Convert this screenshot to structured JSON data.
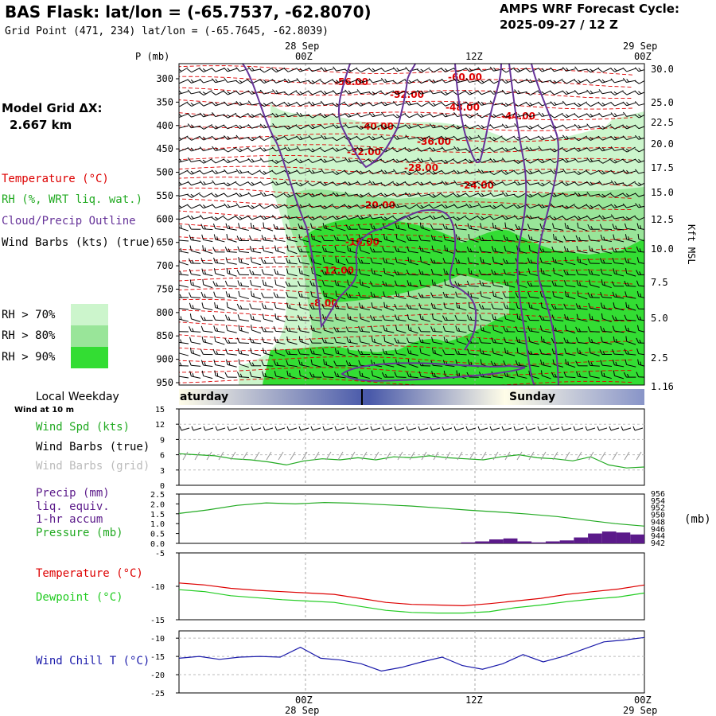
{
  "header": {
    "title": "BAS Flask:  lat/lon = (-65.7537, -62.8070)",
    "grid_point": "Grid Point (471, 234) lat/lon = (-65.7645, -62.8039)",
    "cycle_title": "AMPS WRF Forecast Cycle:",
    "cycle_value": "2025-09-27 / 12  Z"
  },
  "model_grid": {
    "label": "Model Grid ΔX:",
    "value": "2.667 km"
  },
  "legend": {
    "temperature": "Temperature (°C)",
    "rh": "RH (%, WRT liq. wat.)",
    "cloud": "Cloud/Precip Outline",
    "wind": "Wind Barbs (kts) (true)",
    "rh70": "RH > 70%",
    "rh80": "RH > 80%",
    "rh90": "RH > 90%"
  },
  "colors": {
    "temperature": "#dd0000",
    "rh": "#22aa22",
    "cloud": "#663399",
    "rh70": "#ccf5cc",
    "rh80": "#99e599",
    "rh90": "#33dd33",
    "precip": "#5b1a8a",
    "windchill": "#1a1aaa",
    "dewpoint": "#22cc22",
    "day_band": "#4a5aaa"
  },
  "time_axis": {
    "top": [
      {
        "date": "28 Sep",
        "hour": "00Z"
      },
      {
        "date": "",
        "hour": "12Z"
      },
      {
        "date": "29 Sep",
        "hour": "00Z"
      }
    ],
    "bottom": [
      {
        "hour": "00Z",
        "date": "28 Sep"
      },
      {
        "hour": "12Z",
        "date": ""
      },
      {
        "hour": "00Z",
        "date": "29 Sep"
      }
    ]
  },
  "day_band": {
    "label": "Local Weekday",
    "left_day": "aturday",
    "right_day": "Sunday"
  },
  "surface_labels": {
    "wind_note": "Wind at 10 m",
    "wind_spd": "Wind Spd (kts)",
    "wind_barbs_true": "Wind Barbs (true)",
    "wind_barbs_grid": "Wind Barbs (grid)",
    "precip": "Precip (mm)",
    "liq": "liq. equiv.",
    "accum": "1-hr accum",
    "pressure": "Pressure (mb)",
    "pressure_unit": "(mb)",
    "temperature": "Temperature (°C)",
    "dewpoint": "Dewpoint (°C)",
    "windchill": "Wind Chill T (°C)"
  },
  "chart_data": [
    {
      "type": "area",
      "name": "cross-section",
      "p_label": "P (mb)",
      "y_ticks": [
        "300",
        "350",
        "400",
        "450",
        "500",
        "550",
        "600",
        "650",
        "700",
        "750",
        "800",
        "850",
        "900",
        "950"
      ],
      "right_ticks": [
        "30.0",
        "25.0",
        "22.5",
        "20.0",
        "17.5",
        "15.0",
        "12.5",
        "10.0",
        "7.5",
        "5.0",
        "2.5",
        "1.16"
      ],
      "right_label": "Kft MSL",
      "temperature_contours": [
        "-60.00",
        "-56.00",
        "-52.00",
        "-48.00",
        "-44.00",
        "-40.00",
        "-36.00",
        "-32.00",
        "-28.00",
        "-24.00",
        "-20.00",
        "-16.00",
        "-12.00",
        "-8.00"
      ]
    },
    {
      "type": "line",
      "name": "wind",
      "y_ticks": [
        "15",
        "12",
        "9",
        "6",
        "3",
        "0"
      ],
      "ylim": [
        0,
        15
      ],
      "speed": [
        6.2,
        6.0,
        5.8,
        5.2,
        5.0,
        4.6,
        4.0,
        4.8,
        5.2,
        5.0,
        5.4,
        5.0,
        5.6,
        5.4,
        5.8,
        5.4,
        5.2,
        5.0,
        5.6,
        6.0,
        5.4,
        5.2,
        4.8,
        5.6,
        4.0,
        3.4,
        3.6
      ]
    },
    {
      "type": "line",
      "name": "precip-pressure",
      "y_ticks": [
        "2.5",
        "2.0",
        "1.5",
        "1.0",
        "0.5",
        "0.0"
      ],
      "right_ticks": [
        "956",
        "954",
        "952",
        "950",
        "948",
        "946",
        "944",
        "942"
      ],
      "precip_ylim": [
        0,
        2.5
      ],
      "pressure_ylim": [
        942,
        956
      ],
      "pressure": [
        950.5,
        951.5,
        952.8,
        953.5,
        953.2,
        953.6,
        953.4,
        953.0,
        952.6,
        952.0,
        951.4,
        950.9,
        950.3,
        949.6,
        948.6,
        947.6,
        946.9
      ],
      "precip": [
        0,
        0,
        0,
        0,
        0,
        0,
        0,
        0,
        0,
        0,
        0,
        0,
        0,
        0,
        0,
        0,
        0,
        0,
        0,
        0,
        0.05,
        0.1,
        0.2,
        0.25,
        0.1,
        0.05,
        0.1,
        0.15,
        0.3,
        0.5,
        0.6,
        0.55,
        0.45
      ]
    },
    {
      "type": "line",
      "name": "temp-dew",
      "y_ticks": [
        "-5",
        "-10",
        "-15"
      ],
      "ylim": [
        -15,
        -5
      ],
      "temperature": [
        -9.5,
        -9.8,
        -10.3,
        -10.6,
        -10.8,
        -11.0,
        -11.2,
        -11.8,
        -12.4,
        -12.7,
        -12.8,
        -12.9,
        -12.6,
        -12.2,
        -11.8,
        -11.2,
        -10.8,
        -10.4,
        -9.8
      ],
      "dewpoint": [
        -10.5,
        -10.8,
        -11.4,
        -11.7,
        -12.0,
        -12.2,
        -12.4,
        -13.0,
        -13.6,
        -13.9,
        -14.0,
        -14.0,
        -13.8,
        -13.2,
        -12.8,
        -12.3,
        -11.9,
        -11.6,
        -11.0
      ]
    },
    {
      "type": "line",
      "name": "windchill",
      "y_ticks": [
        "-10",
        "-15",
        "-20",
        "-25"
      ],
      "ylim": [
        -25,
        -8
      ],
      "windchill": [
        -15.5,
        -15.0,
        -15.8,
        -15.2,
        -15.0,
        -15.2,
        -12.5,
        -15.5,
        -16.0,
        -17.0,
        -19.0,
        -18.0,
        -16.5,
        -15.2,
        -17.5,
        -18.5,
        -17.0,
        -14.5,
        -16.5,
        -15.0,
        -13.0,
        -11.0,
        -10.5,
        -9.8
      ]
    }
  ]
}
